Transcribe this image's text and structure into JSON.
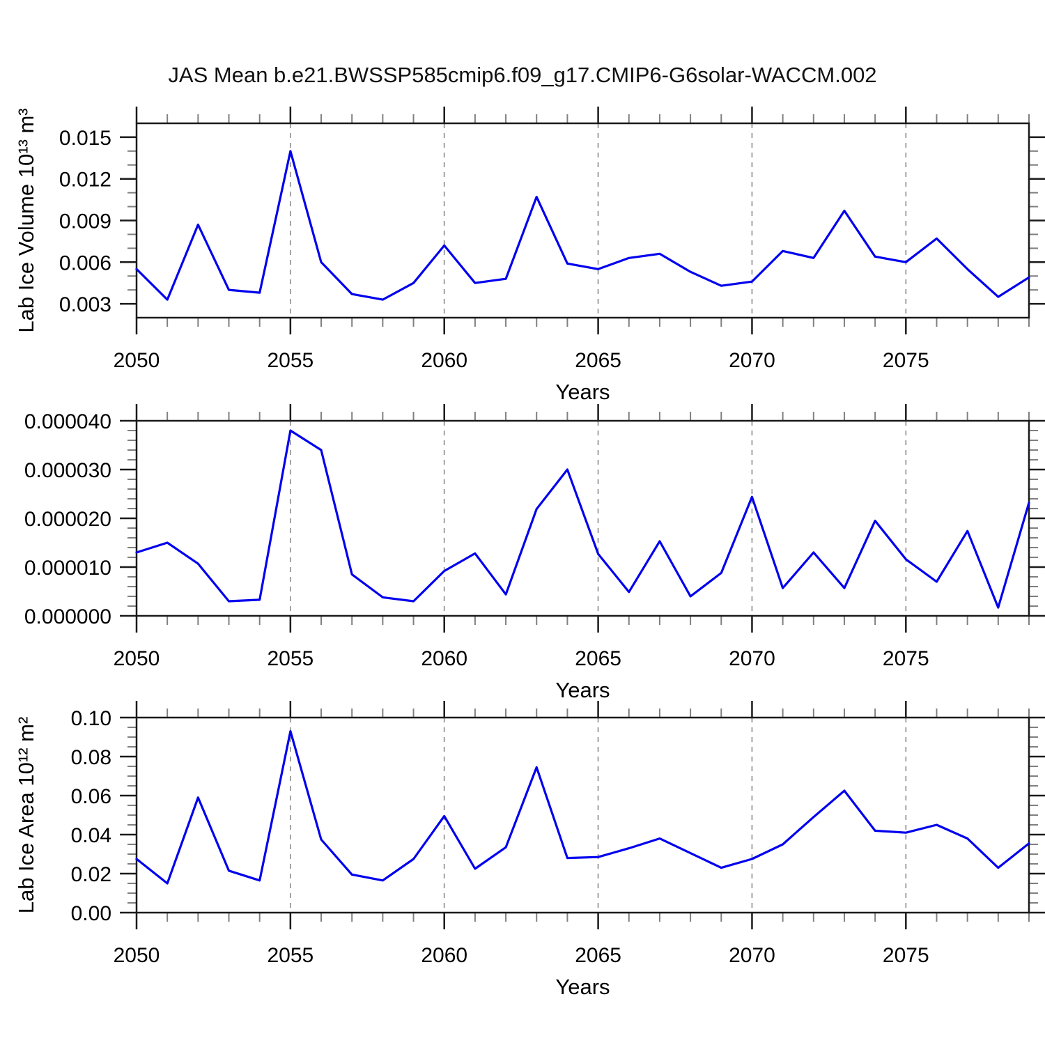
{
  "title": "JAS Mean b.e21.BWSSP585cmip6.f09_g17.CMIP6-G6solar-WACCM.002",
  "colors": {
    "series": "#0000ee",
    "gridline": "#999999",
    "frame": "#1a1a1a",
    "minor_tick": "#808080",
    "text": "#000000"
  },
  "chart_data": [
    {
      "type": "line",
      "ylabel": "Lab Ice Volume 10¹³ m³",
      "xlabel": "Years",
      "x_start": 2050,
      "x_end": 2079,
      "x_major_ticks": [
        2050,
        2055,
        2060,
        2065,
        2070,
        2075
      ],
      "x_tick_labels": [
        "2050",
        "2055",
        "2060",
        "2065",
        "2070",
        "2075"
      ],
      "gridlines_x": [
        2055,
        2060,
        2065,
        2070,
        2075
      ],
      "ylim": [
        0.002,
        0.016
      ],
      "y_major_ticks": [
        0.003,
        0.006,
        0.009,
        0.012,
        0.015
      ],
      "y_tick_labels": [
        "0.003",
        "0.006",
        "0.009",
        "0.012",
        "0.015"
      ],
      "y_minor_step": 0.001,
      "years": [
        2050,
        2051,
        2052,
        2053,
        2054,
        2055,
        2056,
        2057,
        2058,
        2059,
        2060,
        2061,
        2062,
        2063,
        2064,
        2065,
        2066,
        2067,
        2068,
        2069,
        2070,
        2071,
        2072,
        2073,
        2074,
        2075,
        2076,
        2077,
        2078,
        2079
      ],
      "values": [
        0.0055,
        0.0033,
        0.0087,
        0.004,
        0.0038,
        0.014,
        0.006,
        0.0037,
        0.0033,
        0.0045,
        0.0072,
        0.0045,
        0.0048,
        0.0107,
        0.0059,
        0.0055,
        0.0063,
        0.0066,
        0.0053,
        0.0043,
        0.0046,
        0.0068,
        0.0063,
        0.0097,
        0.0064,
        0.006,
        0.0077,
        0.0055,
        0.0035,
        0.0049
      ]
    },
    {
      "type": "line",
      "ylabel": "",
      "xlabel": "Years",
      "x_start": 2050,
      "x_end": 2079,
      "x_major_ticks": [
        2050,
        2055,
        2060,
        2065,
        2070,
        2075
      ],
      "x_tick_labels": [
        "2050",
        "2055",
        "2060",
        "2065",
        "2070",
        "2075"
      ],
      "gridlines_x": [
        2055,
        2060,
        2065,
        2070,
        2075
      ],
      "ylim": [
        0.0,
        4e-05
      ],
      "y_major_ticks": [
        0.0,
        1e-05,
        2e-05,
        3e-05,
        4e-05
      ],
      "y_tick_labels": [
        "0.000000",
        "0.000010",
        "0.000020",
        "0.000030",
        "0.000040"
      ],
      "y_minor_step": 2e-06,
      "years": [
        2050,
        2051,
        2052,
        2053,
        2054,
        2055,
        2056,
        2057,
        2058,
        2059,
        2060,
        2061,
        2062,
        2063,
        2064,
        2065,
        2066,
        2067,
        2068,
        2069,
        2070,
        2071,
        2072,
        2073,
        2074,
        2075,
        2076,
        2077,
        2078,
        2079
      ],
      "values": [
        1.3e-05,
        1.5e-05,
        1.07e-05,
        3e-06,
        3.3e-06,
        3.8e-05,
        3.4e-05,
        8.5e-06,
        3.8e-06,
        3e-06,
        9.2e-06,
        1.28e-05,
        4.4e-06,
        2.19e-05,
        3e-05,
        1.27e-05,
        4.9e-06,
        1.53e-05,
        4e-06,
        8.8e-06,
        2.44e-05,
        5.7e-06,
        1.3e-05,
        5.7e-06,
        1.95e-05,
        1.16e-05,
        7e-06,
        1.74e-05,
        1.7e-06,
        2.32e-05
      ]
    },
    {
      "type": "line",
      "ylabel": "Lab Ice Area 10¹² m²",
      "xlabel": "Years",
      "x_start": 2050,
      "x_end": 2079,
      "x_major_ticks": [
        2050,
        2055,
        2060,
        2065,
        2070,
        2075
      ],
      "x_tick_labels": [
        "2050",
        "2055",
        "2060",
        "2065",
        "2070",
        "2075"
      ],
      "gridlines_x": [
        2055,
        2060,
        2065,
        2070,
        2075
      ],
      "ylim": [
        0.0,
        0.1
      ],
      "y_major_ticks": [
        0.0,
        0.02,
        0.04,
        0.06,
        0.08,
        0.1
      ],
      "y_tick_labels": [
        "0.00",
        "0.02",
        "0.04",
        "0.06",
        "0.08",
        "0.10"
      ],
      "y_minor_step": 0.005,
      "years": [
        2050,
        2051,
        2052,
        2053,
        2054,
        2055,
        2056,
        2057,
        2058,
        2059,
        2060,
        2061,
        2062,
        2063,
        2064,
        2065,
        2066,
        2067,
        2068,
        2069,
        2070,
        2071,
        2072,
        2073,
        2074,
        2075,
        2076,
        2077,
        2078,
        2079
      ],
      "values": [
        0.0275,
        0.015,
        0.059,
        0.0215,
        0.0165,
        0.093,
        0.0375,
        0.0195,
        0.0165,
        0.0275,
        0.0495,
        0.0225,
        0.0335,
        0.0745,
        0.028,
        0.0285,
        0.033,
        0.038,
        0.0305,
        0.023,
        0.0275,
        0.035,
        0.049,
        0.0625,
        0.042,
        0.041,
        0.045,
        0.038,
        0.023,
        0.0355
      ]
    }
  ]
}
